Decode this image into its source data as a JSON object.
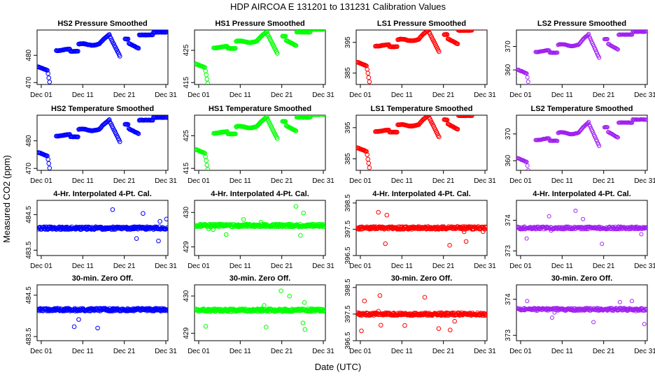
{
  "title": "HDP   AIRCOA E   131201 to 131231   Calibration Values",
  "xlabel": "Date (UTC)",
  "ylabel": "Measured CO2 (ppm)",
  "x_tick_labels": [
    "Dec 01",
    "Dec 11",
    "Dec 21",
    "Dec 31"
  ],
  "chart_data": [
    {
      "type": "scatter",
      "title": "HS2 Pressure Smoothed",
      "color": "#0000ff",
      "yticks": [
        470,
        480
      ],
      "ylim": [
        469.3,
        489.3
      ],
      "pattern": "smooth",
      "base": 482
    },
    {
      "type": "scatter",
      "title": "HS1 Pressure Smoothed",
      "color": "#00ff00",
      "yticks": [
        415,
        425
      ],
      "ylim": [
        414.4,
        431.3
      ],
      "pattern": "smooth",
      "base": 426
    },
    {
      "type": "scatter",
      "title": "LS1 Pressure Smoothed",
      "color": "#ff0000",
      "yticks": [
        385,
        395
      ],
      "ylim": [
        381.3,
        399.0
      ],
      "pattern": "smooth",
      "base": 394
    },
    {
      "type": "scatter",
      "title": "LS2 Pressure Smoothed",
      "color": "#a020f0",
      "yticks": [
        360,
        370
      ],
      "ylim": [
        353.8,
        377.0
      ],
      "pattern": "smooth",
      "base": 368
    },
    {
      "type": "scatter",
      "title": "HS2 Temperature Smoothed",
      "color": "#0000ff",
      "yticks": [
        470,
        480
      ],
      "ylim": [
        469.3,
        489.3
      ],
      "pattern": "smooth",
      "base": 482
    },
    {
      "type": "scatter",
      "title": "HS1 Temperature Smoothed",
      "color": "#00ff00",
      "yticks": [
        415,
        425
      ],
      "ylim": [
        414.4,
        431.3
      ],
      "pattern": "smooth",
      "base": 426
    },
    {
      "type": "scatter",
      "title": "LS1 Temperature Smoothed",
      "color": "#ff0000",
      "yticks": [
        385,
        395
      ],
      "ylim": [
        381.3,
        399.0
      ],
      "pattern": "smooth",
      "base": 394
    },
    {
      "type": "scatter",
      "title": "LS2 Temperature Smoothed",
      "color": "#a020f0",
      "yticks": [
        360,
        370
      ],
      "ylim": [
        356.4,
        377.0
      ],
      "pattern": "smooth",
      "base": 368
    },
    {
      "type": "scatter",
      "title": "4-Hr. Interpolated 4-Pt. Cal.",
      "color": "#0000ff",
      "yticks": [
        483.5,
        484.5
      ],
      "ylim": [
        483.35,
        484.9
      ],
      "pattern": "flat",
      "base": 484.12
    },
    {
      "type": "scatter",
      "title": "4-Hr. Interpolated 4-Pt. Cal.",
      "color": "#00ff00",
      "yticks": [
        429.0,
        430.0
      ],
      "ylim": [
        428.75,
        430.35
      ],
      "pattern": "flat",
      "base": 429.62
    },
    {
      "type": "scatter",
      "title": "4-Hr. Interpolated 4-Pt. Cal.",
      "color": "#ff0000",
      "yticks": [
        396.5,
        397.5,
        398.5
      ],
      "ylim": [
        396.5,
        398.6
      ],
      "pattern": "flat",
      "base": 397.55
    },
    {
      "type": "scatter",
      "title": "4-Hr. Interpolated 4-Pt. Cal.",
      "color": "#a020f0",
      "yticks": [
        373.0,
        374.0
      ],
      "ylim": [
        372.85,
        374.65
      ],
      "pattern": "flat",
      "base": 373.75
    },
    {
      "type": "scatter",
      "title": "30-min. Zero Off.",
      "color": "#0000ff",
      "yticks": [
        483.5,
        484.5
      ],
      "ylim": [
        483.4,
        484.75
      ],
      "pattern": "flat",
      "base": 484.15
    },
    {
      "type": "scatter",
      "title": "30-min. Zero Off.",
      "color": "#00ff00",
      "yticks": [
        429.0,
        430.0
      ],
      "ylim": [
        428.8,
        430.3
      ],
      "pattern": "flat",
      "base": 429.62
    },
    {
      "type": "scatter",
      "title": "30-min. Zero Off.",
      "color": "#ff0000",
      "yticks": [
        396.5,
        397.5,
        398.5
      ],
      "ylim": [
        396.5,
        398.6
      ],
      "pattern": "flat",
      "base": 397.5
    },
    {
      "type": "scatter",
      "title": "30-min. Zero Off.",
      "color": "#a020f0",
      "yticks": [
        373.0,
        374.0
      ],
      "ylim": [
        372.85,
        374.4
      ],
      "pattern": "flat",
      "base": 373.72
    }
  ]
}
